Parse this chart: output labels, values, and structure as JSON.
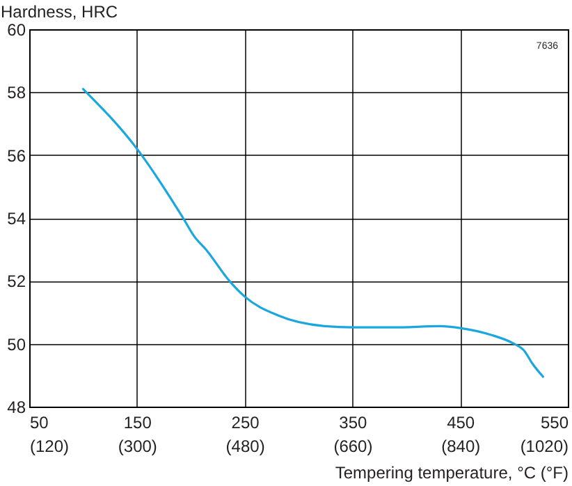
{
  "chart_data": {
    "type": "line",
    "xlabel": "Tempering temperature,  °C (°F)",
    "ylabel": "Hardness, HRC",
    "annotations": [
      "7636"
    ],
    "x": [
      100,
      150,
      192.8,
      203.5,
      214,
      235.8,
      250,
      281,
      324,
      350,
      388,
      431.5,
      450,
      478.8,
      500,
      509,
      517.5,
      527
    ],
    "series": [
      {
        "color": "#1aa7e0",
        "values": [
          58.1,
          56.2,
          54.0,
          53.4,
          53.0,
          52.0,
          51.5,
          50.9,
          50.56,
          50.52,
          50.52,
          50.56,
          50.5,
          50.28,
          50.0,
          49.8,
          49.35,
          48.95
        ]
      }
    ],
    "xlim": [
      50,
      550
    ],
    "xticks": [
      50,
      150,
      250,
      350,
      450,
      550
    ],
    "x2lim": [
      120,
      1020
    ],
    "x2ticks": [
      {
        "value": 120,
        "label": "(120)"
      },
      {
        "value": 300,
        "label": "(300)"
      },
      {
        "value": 480,
        "label": "(480)"
      },
      {
        "value": 660,
        "label": "(660)"
      },
      {
        "value": 840,
        "label": "(840)"
      },
      {
        "value": 1020,
        "label": "(1020)"
      }
    ],
    "ylim": [
      48,
      60
    ],
    "yticks": [
      48,
      50,
      52,
      54,
      56,
      58,
      60
    ],
    "grid": true,
    "marker": "none",
    "line_style": "solid"
  }
}
